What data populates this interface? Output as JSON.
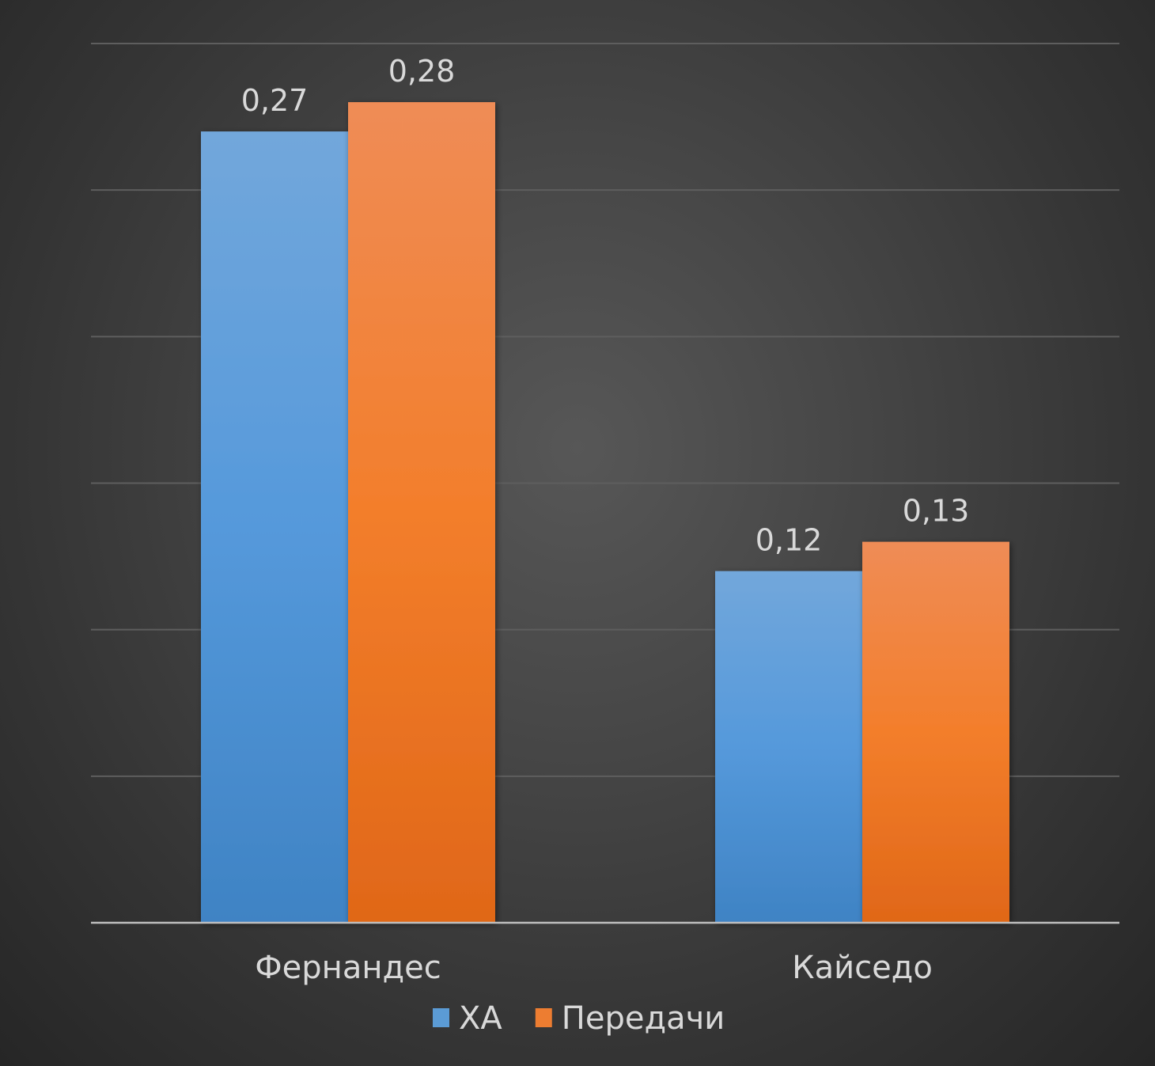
{
  "chart_data": {
    "type": "bar",
    "categories": [
      "Фернандес",
      "Кайседо"
    ],
    "series": [
      {
        "name": "ХА",
        "values": [
          0.27,
          0.12
        ],
        "labels": [
          "0,27",
          "0,12"
        ],
        "color": "#5b9bd5"
      },
      {
        "name": "Передачи",
        "values": [
          0.28,
          0.13
        ],
        "labels": [
          "0,28",
          "0,13"
        ],
        "color": "#ed7d31"
      }
    ],
    "ylim": [
      0,
      0.3
    ],
    "grid": true,
    "legend_position": "bottom",
    "title": "",
    "xlabel": "",
    "ylabel": ""
  }
}
